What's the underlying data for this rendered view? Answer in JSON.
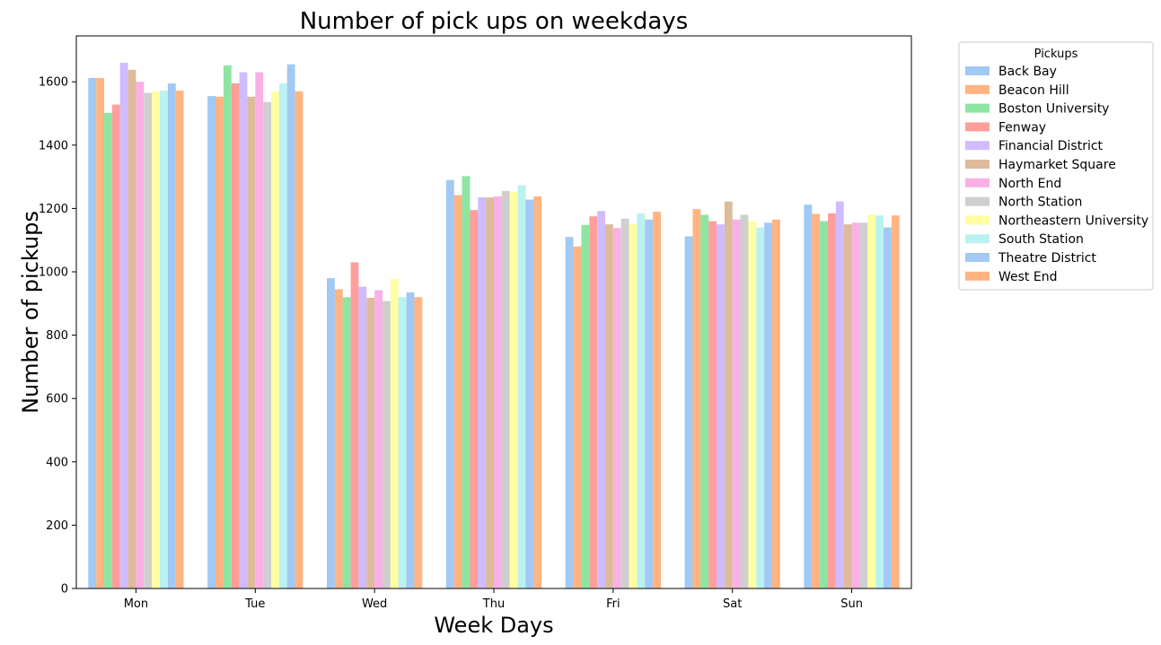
{
  "chart_data": {
    "type": "bar",
    "title": "Number of pick ups on weekdays",
    "xlabel": "Week Days",
    "ylabel": "Number of pickups",
    "categories": [
      "Mon",
      "Tue",
      "Wed",
      "Thu",
      "Fri",
      "Sat",
      "Sun"
    ],
    "ylim": [
      0,
      1745
    ],
    "yticks": [
      0,
      200,
      400,
      600,
      800,
      1000,
      1200,
      1400,
      1600
    ],
    "grid": false,
    "legend": {
      "title": "Pickups",
      "placement": "outside-top-right"
    },
    "series": [
      {
        "name": "Back Bay",
        "color": "#a1c9f4",
        "values": [
          1612,
          1555,
          980,
          1290,
          1110,
          1112,
          1212
        ]
      },
      {
        "name": "Beacon Hill",
        "color": "#ffb482",
        "values": [
          1612,
          1553,
          945,
          1242,
          1080,
          1198,
          1183
        ]
      },
      {
        "name": "Boston University",
        "color": "#8de5a1",
        "values": [
          1502,
          1652,
          920,
          1302,
          1148,
          1180,
          1160
        ]
      },
      {
        "name": "Fenway",
        "color": "#ff9f9b",
        "values": [
          1528,
          1595,
          1030,
          1195,
          1175,
          1160,
          1185
        ]
      },
      {
        "name": "Financial District",
        "color": "#d0bbff",
        "values": [
          1660,
          1630,
          953,
          1235,
          1192,
          1150,
          1222
        ]
      },
      {
        "name": "Haymarket Square",
        "color": "#debb9b",
        "values": [
          1638,
          1553,
          918,
          1235,
          1150,
          1222,
          1150
        ]
      },
      {
        "name": "North End",
        "color": "#fab0e4",
        "values": [
          1600,
          1630,
          942,
          1238,
          1138,
          1165,
          1155
        ]
      },
      {
        "name": "North Station",
        "color": "#cfcfcf",
        "values": [
          1565,
          1536,
          908,
          1255,
          1168,
          1180,
          1155
        ]
      },
      {
        "name": "Northeastern University",
        "color": "#fffea3",
        "values": [
          1570,
          1570,
          978,
          1252,
          1150,
          1160,
          1180
        ]
      },
      {
        "name": "South Station",
        "color": "#b9f2f0",
        "values": [
          1572,
          1595,
          920,
          1273,
          1185,
          1140,
          1178
        ]
      },
      {
        "name": "Theatre District",
        "color": "#a1c9f4",
        "values": [
          1595,
          1655,
          935,
          1228,
          1165,
          1155,
          1140
        ]
      },
      {
        "name": "West End",
        "color": "#ffb482",
        "values": [
          1572,
          1570,
          920,
          1238,
          1190,
          1165,
          1178
        ]
      }
    ]
  }
}
